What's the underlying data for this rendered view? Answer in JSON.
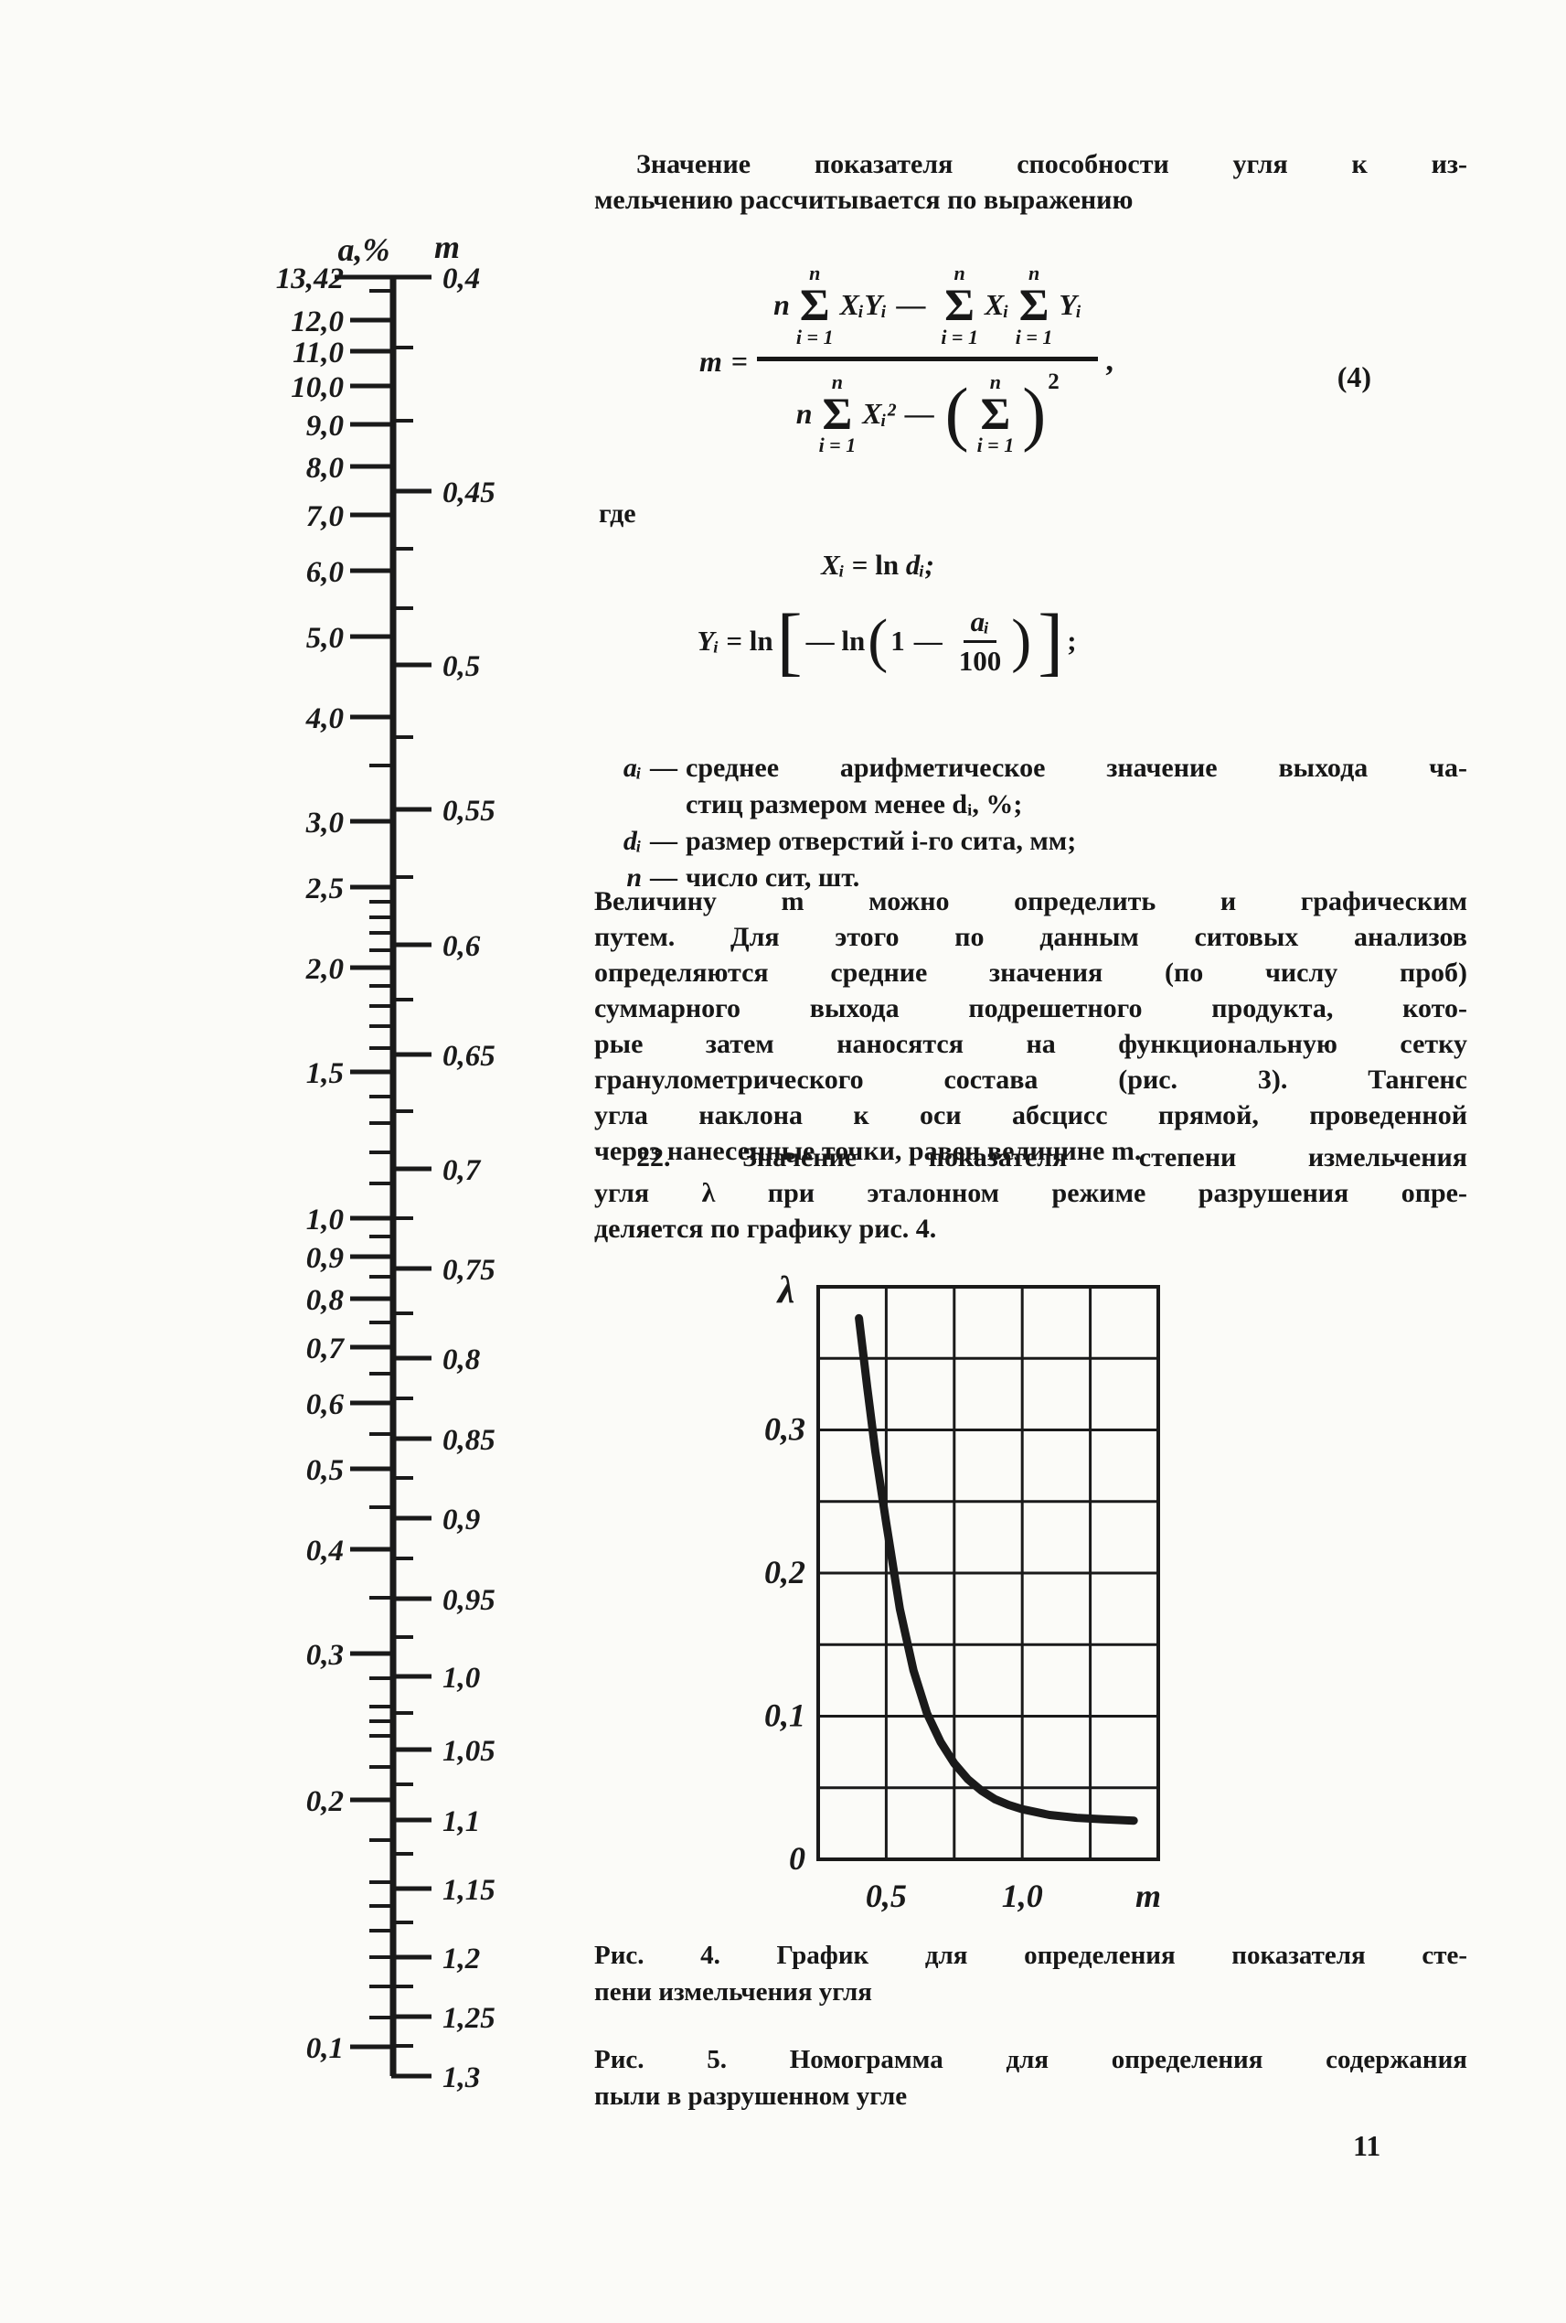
{
  "page": {
    "number": "11"
  },
  "intro": {
    "lines": [
      "Значение показателя способности угля к из-",
      "мельчению рассчитывается по выражению"
    ]
  },
  "formula4": {
    "lhs": "m",
    "eq": "=",
    "coef": "n",
    "sum": {
      "sigma": "Σ",
      "top": "n",
      "bot": "i = 1"
    },
    "num_t1": "XᵢYᵢ",
    "minus": "—",
    "num_t2": "Xᵢ",
    "num_t3": "Yᵢ",
    "den_t1": "Xᵢ²",
    "paren_open": "(",
    "paren_close": ")",
    "sup": "2",
    "comma": ",",
    "number": "(4)"
  },
  "where_label": "где",
  "eq_x": {
    "lhs": "Xᵢ",
    "eq": "=",
    "op": "ln",
    "rhs": "dᵢ;"
  },
  "eq_y": {
    "lhs": "Yᵢ",
    "eq": "= ln",
    "bo": "[",
    "minus1": "—",
    "ln2": "ln",
    "po": "(",
    "one": "1",
    "minus2": "—",
    "fnum": "aᵢ",
    "fden": "100",
    "pc": ")",
    "bc": "]",
    "semi": ";"
  },
  "definitions": [
    {
      "term": "aᵢ",
      "dash": "—",
      "lines": [
        "среднее арифметическое значение выхода ча-",
        "стиц размером менее dᵢ, %;"
      ]
    },
    {
      "term": "dᵢ",
      "dash": "—",
      "lines": [
        "размер отверстий i-го сита, мм;"
      ]
    },
    {
      "term": "n",
      "dash": "—",
      "lines": [
        "число сит, шт."
      ]
    }
  ],
  "para1": {
    "lines": [
      "Величину m можно определить и графическим",
      "путем. Для этого по данным ситовых анализов",
      "определяются средние значения (по числу проб)",
      "суммарного выхода подрешетного продукта, кото-",
      "рые затем наносятся на функциональную сетку",
      "гранулометрического состава (рис. 3). Тангенс",
      "угла наклона к оси абсцисс прямой, проведенной",
      "через нанесенные точки, равен величине m."
    ]
  },
  "para2": {
    "lines": [
      "22. Значение показателя степени измельчения",
      "угля λ при эталонном режиме разрушения опре-",
      "деляется по графику рис. 4."
    ]
  },
  "captions": {
    "fig4": [
      "Рис. 4. График для определения показателя сте-",
      "пени измельчения угля"
    ],
    "fig5": [
      "Рис. 5. Номограмма для определения содержания",
      "пыли в разрушенном угле"
    ]
  },
  "nomogram": {
    "header_left": "a,%",
    "header_right": "m",
    "left_ticks": [
      [
        "13,42",
        303
      ],
      [
        "12,0",
        350
      ],
      [
        "11,0",
        384
      ],
      [
        "10,0",
        422
      ],
      [
        "9,0",
        464
      ],
      [
        "8,0",
        510
      ],
      [
        "7,0",
        563
      ],
      [
        "6,0",
        624
      ],
      [
        "5,0",
        696
      ],
      [
        "4,0",
        784
      ],
      [
        "3,0",
        898
      ],
      [
        "2,5",
        970
      ],
      [
        "2,0",
        1058
      ],
      [
        "1,5",
        1172
      ],
      [
        "1,0",
        1332
      ],
      [
        "0,9",
        1374
      ],
      [
        "0,8",
        1420
      ],
      [
        "0,7",
        1473
      ],
      [
        "0,6",
        1534
      ],
      [
        "0,5",
        1606
      ],
      [
        "0,4",
        1694
      ],
      [
        "0,3",
        1808
      ],
      [
        "0,2",
        1968
      ],
      [
        "0,1",
        2238
      ]
    ],
    "left_minor_y": [
      318,
      837,
      986,
      1003,
      1020,
      1039,
      1078,
      1100,
      1122,
      1146,
      1199,
      1228,
      1260,
      1294,
      1352,
      1396,
      1446,
      1502,
      1568,
      1648,
      1747,
      1835,
      1866,
      1882,
      1898,
      1932,
      2012,
      2058,
      2084,
      2111,
      2140,
      2172,
      2206
    ],
    "right_ticks": [
      [
        "0,4",
        303
      ],
      [
        "0,45",
        537
      ],
      [
        "0,5",
        727
      ],
      [
        "0,55",
        885
      ],
      [
        "0,6",
        1033
      ],
      [
        "0,65",
        1153
      ],
      [
        "0,7",
        1278
      ],
      [
        "0,75",
        1387
      ],
      [
        "0,8",
        1485
      ],
      [
        "0,85",
        1573
      ],
      [
        "0,9",
        1660
      ],
      [
        "0,95",
        1748
      ],
      [
        "1,0",
        1833
      ],
      [
        "1,05",
        1913
      ],
      [
        "1,1",
        1990
      ],
      [
        "1,15",
        2065
      ],
      [
        "1,2",
        2140
      ],
      [
        "1,25",
        2205
      ],
      [
        "1,3",
        2270
      ]
    ],
    "right_minor_y": [
      380,
      460,
      600,
      665,
      806,
      959,
      1093,
      1215,
      1332,
      1436,
      1529,
      1616,
      1704,
      1790,
      1873,
      1951,
      2027,
      2102,
      2172,
      2237
    ]
  },
  "chart_data": [
    {
      "id": "fig4",
      "type": "line",
      "title": "График для определения показателя степени измельчения угля",
      "xlabel": "m",
      "ylabel": "λ",
      "xlim": [
        0.25,
        1.5
      ],
      "ylim": [
        0,
        0.4
      ],
      "x_gridstep": 0.25,
      "y_gridstep": 0.05,
      "grid": true,
      "x_tick_labels": [
        {
          "value": 0.5,
          "label": "0,5"
        },
        {
          "value": 1.0,
          "label": "1,0"
        }
      ],
      "y_tick_labels": [
        {
          "value": 0,
          "label": "0"
        },
        {
          "value": 0.1,
          "label": "0,1"
        },
        {
          "value": 0.2,
          "label": "0,2"
        },
        {
          "value": 0.3,
          "label": "0,3"
        }
      ],
      "series": [
        {
          "name": "lambda(m)",
          "points": [
            [
              0.4,
              0.378
            ],
            [
              0.43,
              0.33
            ],
            [
              0.46,
              0.285
            ],
            [
              0.5,
              0.235
            ],
            [
              0.55,
              0.175
            ],
            [
              0.6,
              0.132
            ],
            [
              0.65,
              0.102
            ],
            [
              0.7,
              0.082
            ],
            [
              0.75,
              0.067
            ],
            [
              0.8,
              0.056
            ],
            [
              0.85,
              0.048
            ],
            [
              0.9,
              0.042
            ],
            [
              0.95,
              0.038
            ],
            [
              1.0,
              0.035
            ],
            [
              1.1,
              0.031
            ],
            [
              1.2,
              0.029
            ],
            [
              1.3,
              0.028
            ],
            [
              1.41,
              0.027
            ]
          ]
        }
      ]
    },
    {
      "id": "fig5-nomogram-scale",
      "type": "table",
      "title": "Номограмма для определения содержания пыли в разрушенном угле",
      "left_axis_label": "a,%",
      "right_axis_label": "m",
      "left_axis_values": [
        13.42,
        12,
        11,
        10,
        9,
        8,
        7,
        6,
        5,
        4,
        3,
        2.5,
        2,
        1.5,
        1,
        0.9,
        0.8,
        0.7,
        0.6,
        0.5,
        0.4,
        0.3,
        0.2,
        0.1
      ],
      "right_axis_values": [
        0.4,
        0.45,
        0.5,
        0.55,
        0.6,
        0.65,
        0.7,
        0.75,
        0.8,
        0.85,
        0.9,
        0.95,
        1.0,
        1.05,
        1.1,
        1.15,
        1.2,
        1.25,
        1.3
      ]
    }
  ]
}
